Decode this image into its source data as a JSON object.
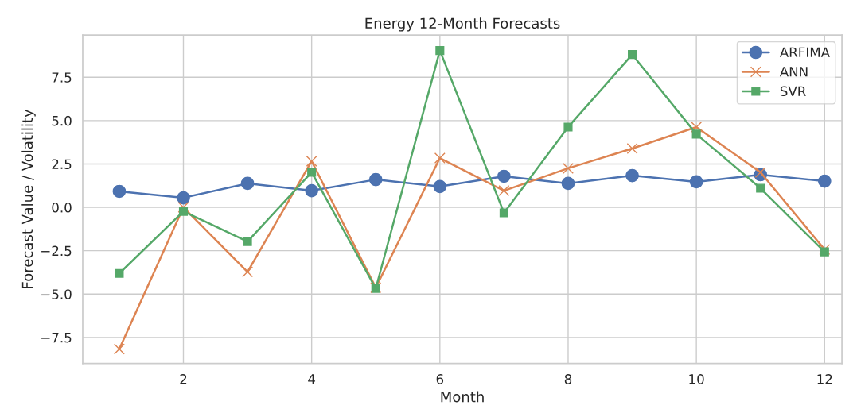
{
  "chart_data": {
    "type": "line",
    "title": "Energy 12-Month Forecasts",
    "xlabel": "Month",
    "ylabel": "Forecast Value / Volatility",
    "x": [
      1,
      2,
      3,
      4,
      5,
      6,
      7,
      8,
      9,
      10,
      11,
      12
    ],
    "series": [
      {
        "name": "ARFIMA",
        "color": "#4c72b0",
        "marker": "circle",
        "values": [
          0.92,
          0.55,
          1.38,
          0.96,
          1.6,
          1.2,
          1.79,
          1.38,
          1.83,
          1.47,
          1.88,
          1.51
        ]
      },
      {
        "name": "ANN",
        "color": "#dd8452",
        "marker": "cross",
        "values": [
          -8.17,
          0.0,
          -3.72,
          2.66,
          -4.63,
          2.84,
          0.96,
          2.25,
          3.39,
          4.63,
          2.02,
          -2.43
        ]
      },
      {
        "name": "SVR",
        "color": "#55a868",
        "marker": "square",
        "values": [
          -3.81,
          -0.23,
          -1.97,
          2.02,
          -4.68,
          9.04,
          -0.32,
          4.63,
          8.81,
          4.22,
          1.1,
          -2.57
        ]
      }
    ],
    "xlim": [
      0.43,
      12.27
    ],
    "ylim": [
      -9.0,
      9.93
    ],
    "xticks": [
      2,
      4,
      6,
      8,
      10,
      12
    ],
    "yticks": [
      {
        "value": -7.5,
        "label": "−7.5"
      },
      {
        "value": -5.0,
        "label": "−5.0"
      },
      {
        "value": -2.5,
        "label": "−2.5"
      },
      {
        "value": 0.0,
        "label": "0.0"
      },
      {
        "value": 2.5,
        "label": "2.5"
      },
      {
        "value": 5.0,
        "label": "5.0"
      },
      {
        "value": 7.5,
        "label": "7.5"
      }
    ],
    "grid": true,
    "legend": "top right",
    "line_style": "solid"
  }
}
